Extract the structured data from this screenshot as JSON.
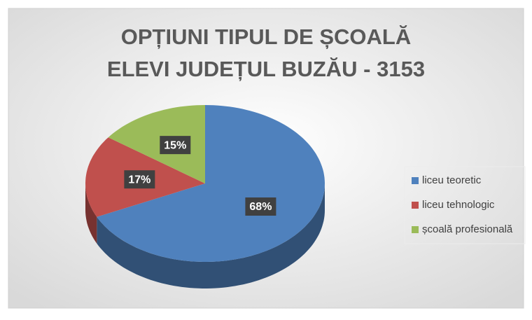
{
  "chart_data": {
    "type": "pie",
    "title": [
      "OPȚIUNI TIPUL DE ȘCOALĂ",
      "ELEVI JUDEȚUL BUZĂU - 3153"
    ],
    "categories": [
      "liceu teoretic",
      "liceu tehnologic",
      "școală profesională"
    ],
    "values": [
      68,
      17,
      15
    ],
    "value_labels": [
      "68%",
      "17%",
      "15%"
    ],
    "colors": [
      "#4f81bd",
      "#c0504d",
      "#9bbb59"
    ],
    "legend": "right"
  }
}
